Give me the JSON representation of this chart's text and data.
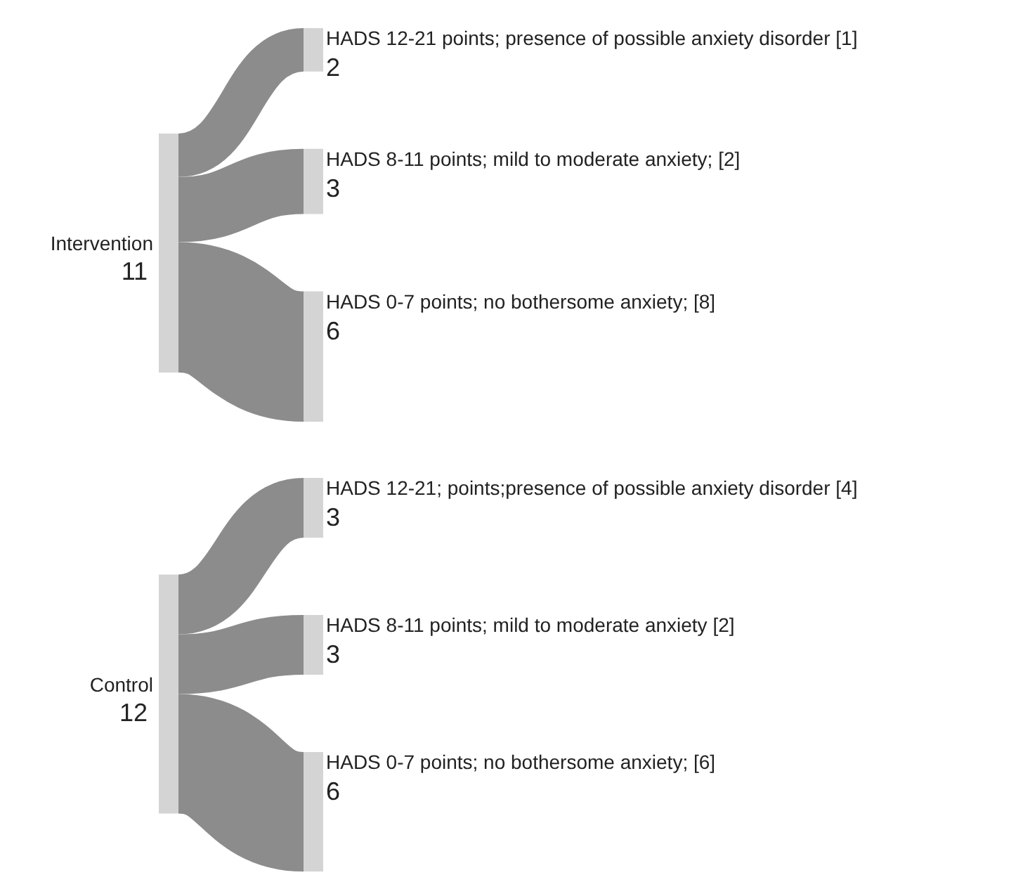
{
  "chart_data": [
    {
      "type": "other",
      "categories": [
        "HADS 12-21 points; presence of possible anxiety disorder [1]",
        "HADS 8-11 points; mild to moderate anxiety; [2]",
        "HADS 0-7 points; no bothersome anxiety; [8]"
      ],
      "series": [
        {
          "name": "Intervention",
          "values": [
            2,
            3,
            6
          ]
        }
      ],
      "totals": [
        "11"
      ],
      "data_labels": true
    },
    {
      "type": "other",
      "categories": [
        "HADS 12-21; points;presence of possible anxiety disorder [4]",
        "HADS 8-11 points; mild to moderate anxiety [2]",
        "HADS 0-7 points; no bothersome anxiety; [6]"
      ],
      "series": [
        {
          "name": "Control",
          "values": [
            3,
            3,
            6
          ]
        }
      ],
      "totals": [
        "12"
      ],
      "data_labels": true
    }
  ]
}
